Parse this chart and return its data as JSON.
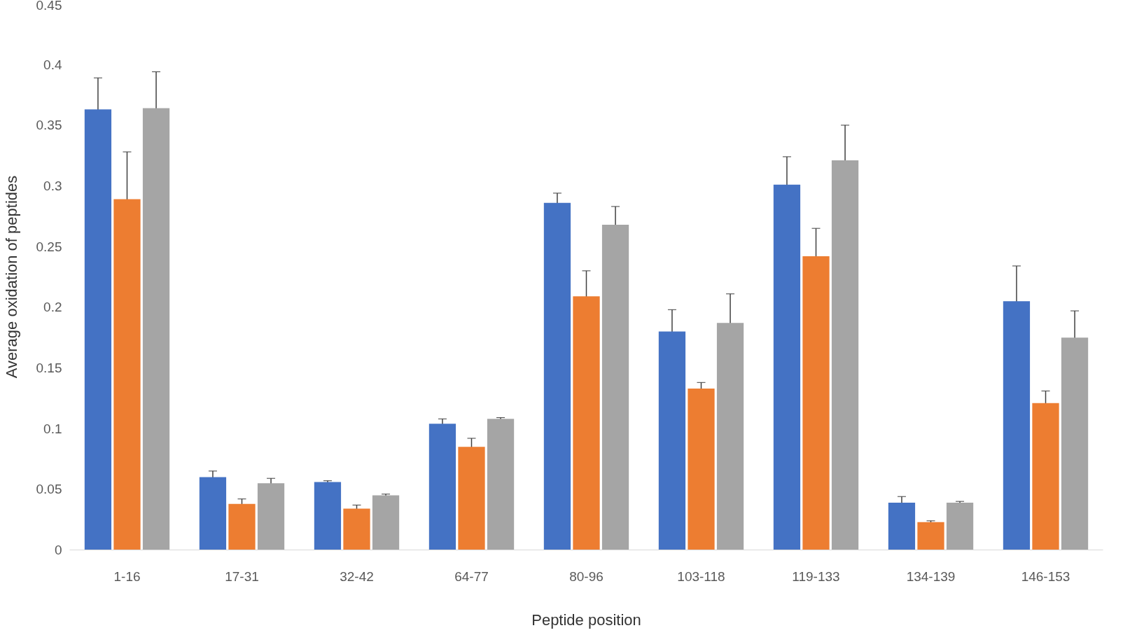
{
  "chart_data": {
    "type": "bar",
    "xlabel": "Peptide position",
    "ylabel": "Average oxidation of peptides",
    "categories": [
      "1-16",
      "17-31",
      "32-42",
      "64-77",
      "80-96",
      "103-118",
      "119-133",
      "134-139",
      "146-153"
    ],
    "series": [
      {
        "color": "#4472c4",
        "values": [
          0.363,
          0.06,
          0.056,
          0.104,
          0.286,
          0.18,
          0.301,
          0.039,
          0.205
        ],
        "errors": [
          0.026,
          0.005,
          0.001,
          0.004,
          0.008,
          0.018,
          0.023,
          0.005,
          0.029
        ]
      },
      {
        "color": "#ed7d31",
        "values": [
          0.289,
          0.038,
          0.034,
          0.085,
          0.209,
          0.133,
          0.242,
          0.023,
          0.121
        ],
        "errors": [
          0.039,
          0.004,
          0.003,
          0.007,
          0.021,
          0.005,
          0.023,
          0.001,
          0.01
        ]
      },
      {
        "color": "#a5a5a5",
        "values": [
          0.364,
          0.055,
          0.045,
          0.108,
          0.268,
          0.187,
          0.321,
          0.039,
          0.175
        ],
        "errors": [
          0.03,
          0.004,
          0.001,
          0.001,
          0.015,
          0.024,
          0.029,
          0.001,
          0.022
        ]
      }
    ],
    "ylim": [
      0,
      0.45
    ],
    "yticks": [
      0,
      0.05,
      0.1,
      0.15,
      0.2,
      0.25,
      0.3,
      0.35,
      0.4,
      0.45
    ],
    "grid": false
  }
}
